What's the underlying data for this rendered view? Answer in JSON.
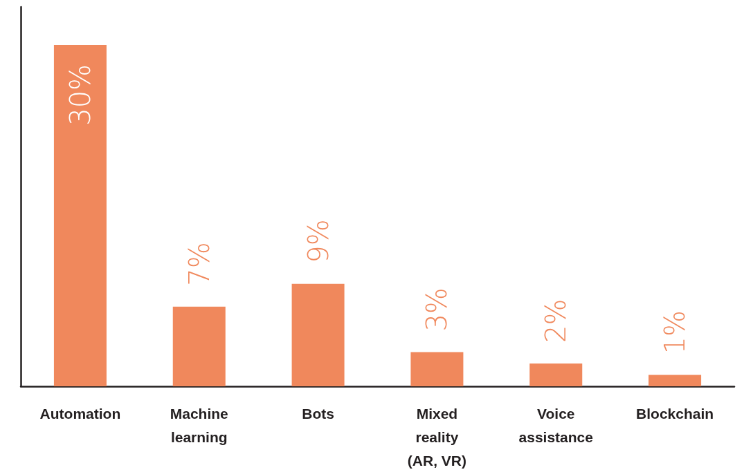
{
  "chart_data": {
    "type": "bar",
    "categories": [
      "Automation",
      "Machine learning",
      "Bots",
      "Mixed reality (AR, VR)",
      "Voice assistance",
      "Blockchain"
    ],
    "values": [
      30,
      7,
      9,
      3,
      2,
      1
    ],
    "value_labels": [
      "30%",
      "7%",
      "9%",
      "3%",
      "2%",
      "1%"
    ],
    "color": "#f0885c"
  }
}
